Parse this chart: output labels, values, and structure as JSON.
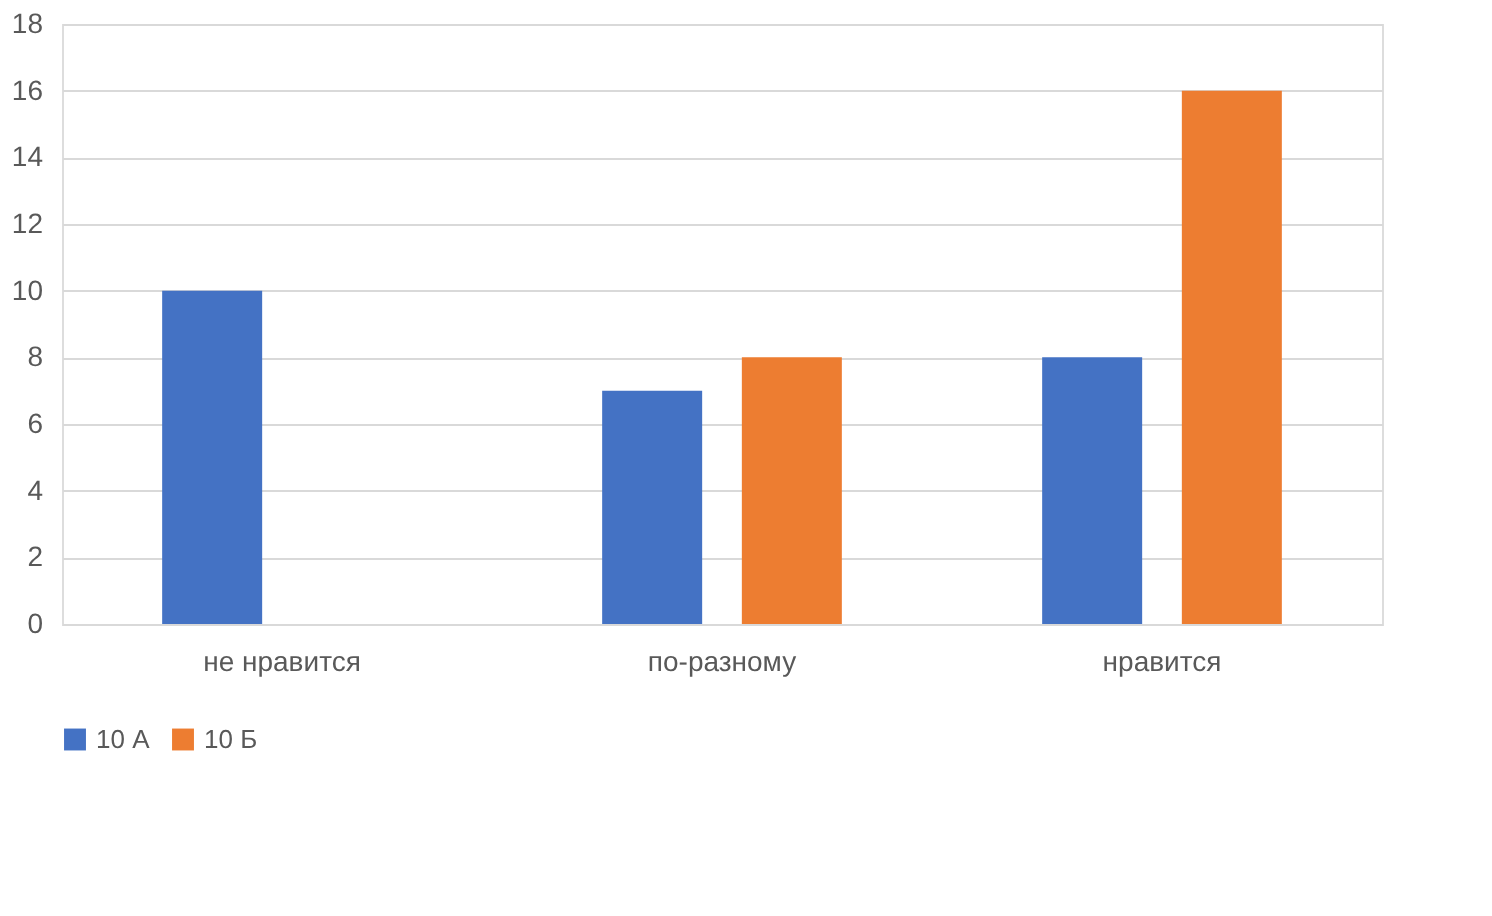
{
  "chart_data": {
    "type": "bar",
    "categories": [
      "не нравится",
      "по-разному",
      "нравится"
    ],
    "series": [
      {
        "name": "10 А",
        "color": "#4472c4",
        "values": [
          10,
          7,
          8
        ]
      },
      {
        "name": "10 Б",
        "color": "#ed7d31",
        "values": [
          null,
          8,
          16
        ]
      }
    ],
    "ylim": [
      0,
      18
    ],
    "yticks": [
      0,
      2,
      4,
      6,
      8,
      10,
      12,
      14,
      16,
      18
    ],
    "grid": "y",
    "legend": "bottom"
  }
}
